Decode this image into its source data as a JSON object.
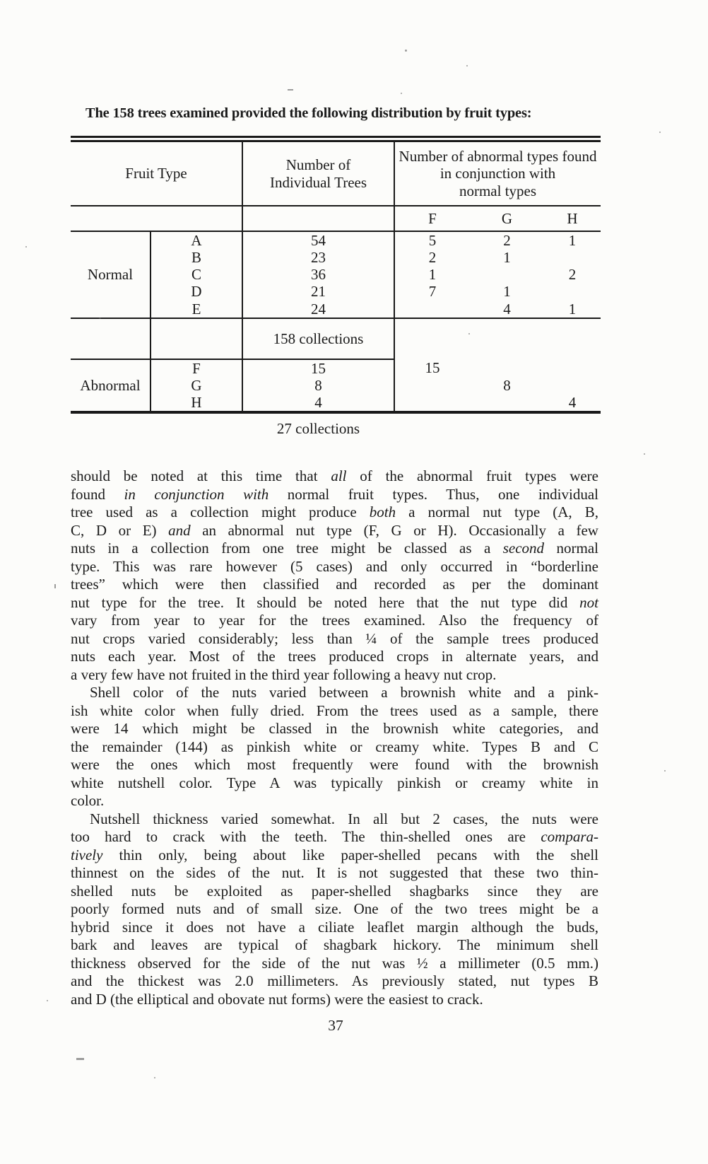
{
  "intro": "The 158 trees examined provided the following distribution by fruit types:",
  "table": {
    "headers": {
      "fruit_type": "Fruit Type",
      "individual_trees": "Number of\nIndividual Trees",
      "abnormal_conjunction": "Number of abnormal types found\nin conjunction with\nnormal  types"
    },
    "subheaders": [
      "F",
      "G",
      "H"
    ],
    "normal": {
      "label": "Normal",
      "rows": [
        {
          "letter": "A",
          "trees": "54",
          "f": "5",
          "g": "2",
          "h": "1"
        },
        {
          "letter": "B",
          "trees": "23",
          "f": "2",
          "g": "1",
          "h": ""
        },
        {
          "letter": "C",
          "trees": "36",
          "f": "1",
          "g": "",
          "h": "2"
        },
        {
          "letter": "D",
          "trees": "21",
          "f": "7",
          "g": "1",
          "h": ""
        },
        {
          "letter": "E",
          "trees": "24",
          "f": "",
          "g": "4",
          "h": "1"
        }
      ],
      "total": "158 collections"
    },
    "abnormal": {
      "label": "Abnormal",
      "rows": [
        {
          "letter": "F",
          "trees": "15",
          "f": "15",
          "g": "",
          "h": ""
        },
        {
          "letter": "G",
          "trees": "8",
          "f": "",
          "g": "8",
          "h": ""
        },
        {
          "letter": "H",
          "trees": "4",
          "f": "",
          "g": "",
          "h": "4"
        }
      ],
      "total": "27 collections"
    }
  },
  "body": {
    "paragraphs": [
      {
        "lines": [
          "should be noted at this time that *all* of the abnormal fruit types were",
          "found *in conjunction with* normal fruit types. Thus, one individual",
          "tree used as a collection might produce *both* a normal nut type (A, B,",
          "C, D or E) *and* an abnormal nut type (F, G or H). Occasionally a few",
          "nuts in a collection from one tree might be classed as a *second* normal",
          "type. This was rare however (5 cases) and only occurred in “borderline",
          "trees” which were then classified and recorded as per the dominant",
          "nut type for the tree. It should be noted here that the nut type did *not*",
          "vary from year to year for the trees examined. Also the frequency of",
          "nut crops varied considerably; less than ¼ of the sample trees produced",
          "nuts each year. Most of the trees produced crops in alternate years, and",
          "a very few have not fruited in the third year following a heavy nut crop."
        ]
      },
      {
        "lines": [
          "Shell color of the nuts varied between a brownish white and a pink-",
          "ish white color when fully dried. From the trees used as a sample, there",
          "were 14 which might be classed in the brownish white categories, and",
          "the remainder (144) as pinkish white or creamy white. Types B and C",
          "were the ones which most frequently were found with the brownish",
          "white nutshell color. Type A was typically pinkish or creamy white in",
          "color."
        ]
      },
      {
        "lines": [
          "Nutshell thickness varied somewhat. In all but 2 cases, the nuts were",
          "too hard to crack with the teeth. The thin-shelled ones are *compara-*",
          "*tively* thin only, being about like paper-shelled pecans with the shell",
          "thinnest on the sides of the nut. It is not suggested that these two thin-",
          "shelled nuts be exploited as paper-shelled shagbarks since they are",
          "poorly formed nuts and of small size. One of the two trees might be a",
          "hybrid since it does not have a ciliate leaflet margin although the buds,",
          "bark and leaves are typical of shagbark hickory. The minimum shell",
          "thickness observed for the side of the nut was ½ a millimeter (0.5 mm.)",
          "and the thickest was 2.0 millimeters. As previously stated, nut types B",
          "and D (the elliptical and obovate nut forms) were the easiest to crack."
        ]
      }
    ]
  },
  "page_number": "37"
}
